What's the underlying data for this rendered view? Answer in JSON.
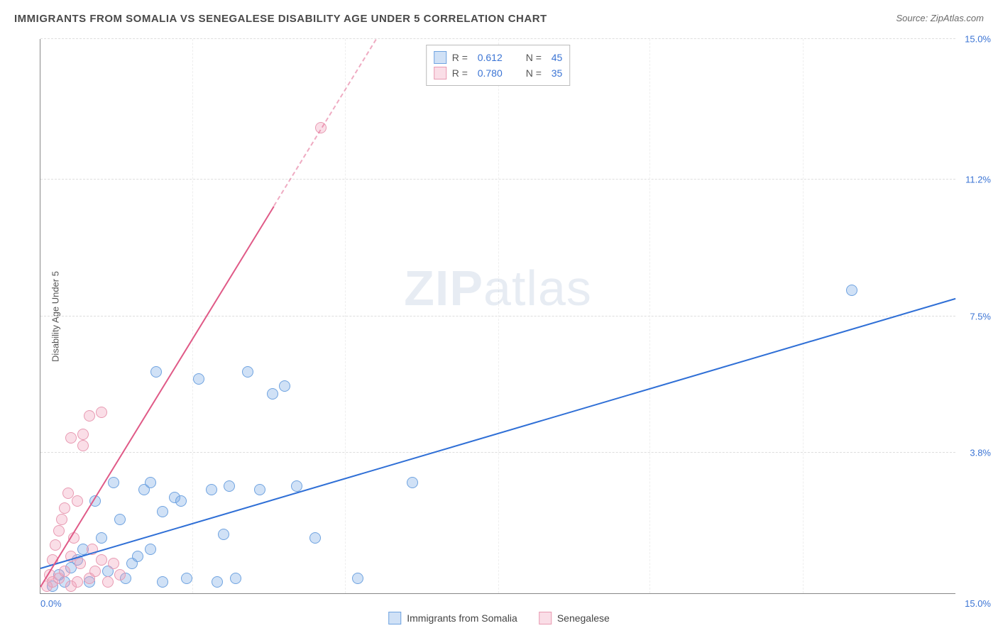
{
  "title": "IMMIGRANTS FROM SOMALIA VS SENEGALESE DISABILITY AGE UNDER 5 CORRELATION CHART",
  "source_prefix": "Source: ",
  "source_name": "ZipAtlas.com",
  "y_axis_label": "Disability Age Under 5",
  "watermark_bold": "ZIP",
  "watermark_light": "atlas",
  "chart": {
    "type": "scatter",
    "xlim": [
      0,
      15
    ],
    "ylim": [
      0,
      15
    ],
    "x_tick_left": "0.0%",
    "x_tick_right": "15.0%",
    "y_ticks": [
      {
        "value": 3.8,
        "label": "3.8%"
      },
      {
        "value": 7.5,
        "label": "7.5%"
      },
      {
        "value": 11.2,
        "label": "11.2%"
      },
      {
        "value": 15.0,
        "label": "15.0%"
      }
    ],
    "x_grid_positions_pct": [
      16.6,
      33.3,
      50,
      66.6,
      83.3
    ],
    "background_color": "#ffffff",
    "grid_color": "#dddddd",
    "point_radius": 8,
    "series": [
      {
        "name": "Immigrants from Somalia",
        "fill_color": "rgba(120,170,230,0.35)",
        "stroke_color": "#6fa3e0",
        "trend_color": "#2f6fd6",
        "trend_start": {
          "x": 0,
          "y": 0.7
        },
        "trend_end": {
          "x": 15,
          "y": 8.0
        },
        "trend_dash": false,
        "R": "0.612",
        "N": "45",
        "points": [
          {
            "x": 0.2,
            "y": 0.2
          },
          {
            "x": 0.3,
            "y": 0.5
          },
          {
            "x": 0.4,
            "y": 0.3
          },
          {
            "x": 0.5,
            "y": 0.7
          },
          {
            "x": 0.6,
            "y": 0.9
          },
          {
            "x": 0.7,
            "y": 1.2
          },
          {
            "x": 0.8,
            "y": 0.3
          },
          {
            "x": 0.9,
            "y": 2.5
          },
          {
            "x": 1.0,
            "y": 1.5
          },
          {
            "x": 1.1,
            "y": 0.6
          },
          {
            "x": 1.2,
            "y": 3.0
          },
          {
            "x": 1.3,
            "y": 2.0
          },
          {
            "x": 1.4,
            "y": 0.4
          },
          {
            "x": 1.5,
            "y": 0.8
          },
          {
            "x": 1.6,
            "y": 1.0
          },
          {
            "x": 1.7,
            "y": 2.8
          },
          {
            "x": 1.8,
            "y": 3.0
          },
          {
            "x": 1.8,
            "y": 1.2
          },
          {
            "x": 1.9,
            "y": 6.0
          },
          {
            "x": 2.0,
            "y": 2.2
          },
          {
            "x": 2.0,
            "y": 0.3
          },
          {
            "x": 2.2,
            "y": 2.6
          },
          {
            "x": 2.3,
            "y": 2.5
          },
          {
            "x": 2.4,
            "y": 0.4
          },
          {
            "x": 2.6,
            "y": 5.8
          },
          {
            "x": 2.8,
            "y": 2.8
          },
          {
            "x": 2.9,
            "y": 0.3
          },
          {
            "x": 3.0,
            "y": 1.6
          },
          {
            "x": 3.1,
            "y": 2.9
          },
          {
            "x": 3.2,
            "y": 0.4
          },
          {
            "x": 3.4,
            "y": 6.0
          },
          {
            "x": 3.6,
            "y": 2.8
          },
          {
            "x": 3.8,
            "y": 5.4
          },
          {
            "x": 4.0,
            "y": 5.6
          },
          {
            "x": 4.2,
            "y": 2.9
          },
          {
            "x": 4.5,
            "y": 1.5
          },
          {
            "x": 5.2,
            "y": 0.4
          },
          {
            "x": 6.1,
            "y": 3.0
          },
          {
            "x": 13.3,
            "y": 8.2
          }
        ]
      },
      {
        "name": "Senegalese",
        "fill_color": "rgba(240,160,185,0.35)",
        "stroke_color": "#e89ab2",
        "trend_color": "#e05a87",
        "trend_start": {
          "x": 0,
          "y": 0.2
        },
        "trend_end": {
          "x": 5.5,
          "y": 15.0
        },
        "trend_dash_after_y": 10.5,
        "R": "0.780",
        "N": "35",
        "points": [
          {
            "x": 0.1,
            "y": 0.2
          },
          {
            "x": 0.15,
            "y": 0.5
          },
          {
            "x": 0.2,
            "y": 0.3
          },
          {
            "x": 0.2,
            "y": 0.9
          },
          {
            "x": 0.25,
            "y": 1.3
          },
          {
            "x": 0.3,
            "y": 0.4
          },
          {
            "x": 0.3,
            "y": 1.7
          },
          {
            "x": 0.35,
            "y": 2.0
          },
          {
            "x": 0.4,
            "y": 0.6
          },
          {
            "x": 0.4,
            "y": 2.3
          },
          {
            "x": 0.45,
            "y": 2.7
          },
          {
            "x": 0.5,
            "y": 0.2
          },
          {
            "x": 0.5,
            "y": 1.0
          },
          {
            "x": 0.5,
            "y": 4.2
          },
          {
            "x": 0.55,
            "y": 1.5
          },
          {
            "x": 0.6,
            "y": 0.3
          },
          {
            "x": 0.6,
            "y": 2.5
          },
          {
            "x": 0.65,
            "y": 0.8
          },
          {
            "x": 0.7,
            "y": 4.0
          },
          {
            "x": 0.7,
            "y": 4.3
          },
          {
            "x": 0.8,
            "y": 4.8
          },
          {
            "x": 0.8,
            "y": 0.4
          },
          {
            "x": 0.85,
            "y": 1.2
          },
          {
            "x": 0.9,
            "y": 0.6
          },
          {
            "x": 1.0,
            "y": 0.9
          },
          {
            "x": 1.0,
            "y": 4.9
          },
          {
            "x": 1.1,
            "y": 0.3
          },
          {
            "x": 1.2,
            "y": 0.8
          },
          {
            "x": 1.3,
            "y": 0.5
          },
          {
            "x": 4.6,
            "y": 12.6
          }
        ]
      }
    ]
  },
  "legend_top": {
    "r_label": "R =",
    "n_label": "N ="
  }
}
